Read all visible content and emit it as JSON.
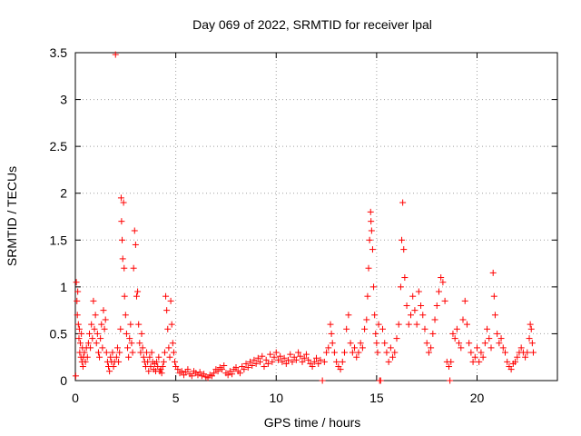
{
  "chart_data": {
    "type": "scatter",
    "title": "Day 069 of 2022, SRMTID for receiver lpal",
    "xlabel": "GPS time / hours",
    "ylabel": "SRMTID / TECUs",
    "xlim": [
      0,
      24
    ],
    "ylim": [
      0,
      3.5
    ],
    "x_ticks": [
      0,
      5,
      10,
      15,
      20
    ],
    "x_tick_labels": [
      "0",
      "5",
      "10",
      "15",
      "20"
    ],
    "y_ticks": [
      0,
      0.5,
      1,
      1.5,
      2,
      2.5,
      3,
      3.5
    ],
    "y_tick_labels": [
      "0",
      "0.5",
      "1",
      "1.5",
      "2",
      "2.5",
      "3",
      "3.5"
    ],
    "grid": true,
    "marker": "+",
    "color": "#ff0000",
    "series": [
      {
        "name": "SRMTID",
        "points": [
          [
            0.02,
            0.05
          ],
          [
            0.05,
            1.05
          ],
          [
            0.08,
            0.85
          ],
          [
            0.1,
            0.7
          ],
          [
            0.12,
            0.95
          ],
          [
            0.15,
            0.6
          ],
          [
            0.18,
            0.45
          ],
          [
            0.2,
            0.55
          ],
          [
            0.22,
            0.3
          ],
          [
            0.25,
            0.4
          ],
          [
            0.28,
            0.25
          ],
          [
            0.3,
            0.5
          ],
          [
            0.33,
            0.2
          ],
          [
            0.35,
            0.35
          ],
          [
            0.38,
            0.15
          ],
          [
            0.4,
            0.25
          ],
          [
            0.45,
            0.3
          ],
          [
            0.5,
            0.2
          ],
          [
            0.55,
            0.35
          ],
          [
            0.6,
            0.25
          ],
          [
            0.65,
            0.4
          ],
          [
            0.7,
            0.5
          ],
          [
            0.75,
            0.35
          ],
          [
            0.8,
            0.6
          ],
          [
            0.85,
            0.45
          ],
          [
            0.9,
            0.85
          ],
          [
            0.95,
            0.55
          ],
          [
            1.0,
            0.7
          ],
          [
            1.05,
            0.4
          ],
          [
            1.1,
            0.5
          ],
          [
            1.15,
            0.3
          ],
          [
            1.2,
            0.25
          ],
          [
            1.25,
            0.45
          ],
          [
            1.3,
            0.6
          ],
          [
            1.35,
            0.35
          ],
          [
            1.4,
            0.75
          ],
          [
            1.45,
            0.55
          ],
          [
            1.5,
            0.65
          ],
          [
            1.55,
            0.3
          ],
          [
            1.6,
            0.2
          ],
          [
            1.65,
            0.15
          ],
          [
            1.7,
            0.1
          ],
          [
            1.75,
            0.25
          ],
          [
            1.8,
            0.2
          ],
          [
            1.85,
            0.3
          ],
          [
            1.9,
            0.15
          ],
          [
            1.95,
            0.2
          ],
          [
            2.0,
            3.48
          ],
          [
            2.05,
            0.25
          ],
          [
            2.1,
            0.35
          ],
          [
            2.15,
            0.2
          ],
          [
            2.2,
            0.3
          ],
          [
            2.25,
            0.55
          ],
          [
            2.28,
            1.95
          ],
          [
            2.3,
            1.7
          ],
          [
            2.33,
            1.5
          ],
          [
            2.36,
            1.3
          ],
          [
            2.4,
            1.9
          ],
          [
            2.43,
            1.2
          ],
          [
            2.45,
            0.9
          ],
          [
            2.5,
            0.7
          ],
          [
            2.55,
            0.5
          ],
          [
            2.6,
            0.35
          ],
          [
            2.65,
            0.25
          ],
          [
            2.7,
            0.45
          ],
          [
            2.75,
            0.6
          ],
          [
            2.8,
            0.4
          ],
          [
            2.85,
            0.3
          ],
          [
            2.9,
            1.2
          ],
          [
            2.95,
            1.6
          ],
          [
            3.0,
            1.45
          ],
          [
            3.05,
            0.9
          ],
          [
            3.1,
            0.95
          ],
          [
            3.15,
            0.6
          ],
          [
            3.2,
            0.4
          ],
          [
            3.25,
            0.3
          ],
          [
            3.3,
            0.5
          ],
          [
            3.35,
            0.35
          ],
          [
            3.4,
            0.25
          ],
          [
            3.45,
            0.2
          ],
          [
            3.5,
            0.15
          ],
          [
            3.55,
            0.3
          ],
          [
            3.6,
            0.2
          ],
          [
            3.65,
            0.1
          ],
          [
            3.7,
            0.25
          ],
          [
            3.75,
            0.15
          ],
          [
            3.8,
            0.3
          ],
          [
            3.85,
            0.2
          ],
          [
            3.9,
            0.12
          ],
          [
            3.95,
            0.18
          ],
          [
            4.0,
            0.1
          ],
          [
            4.05,
            0.2
          ],
          [
            4.1,
            0.15
          ],
          [
            4.15,
            0.25
          ],
          [
            4.2,
            0.1
          ],
          [
            4.25,
            0.12
          ],
          [
            4.3,
            0.08
          ],
          [
            4.35,
            0.15
          ],
          [
            4.4,
            0.2
          ],
          [
            4.45,
            0.3
          ],
          [
            4.5,
            0.9
          ],
          [
            4.55,
            0.75
          ],
          [
            4.6,
            0.55
          ],
          [
            4.65,
            0.35
          ],
          [
            4.7,
            0.25
          ],
          [
            4.75,
            0.85
          ],
          [
            4.8,
            0.6
          ],
          [
            4.85,
            0.4
          ],
          [
            4.9,
            0.3
          ],
          [
            4.95,
            0.2
          ],
          [
            5.0,
            0.15
          ],
          [
            5.1,
            0.12
          ],
          [
            5.2,
            0.08
          ],
          [
            5.3,
            0.1
          ],
          [
            5.4,
            0.06
          ],
          [
            5.5,
            0.09
          ],
          [
            5.6,
            0.12
          ],
          [
            5.7,
            0.07
          ],
          [
            5.8,
            0.05
          ],
          [
            5.9,
            0.1
          ],
          [
            6.0,
            0.08
          ],
          [
            6.1,
            0.06
          ],
          [
            6.2,
            0.09
          ],
          [
            6.3,
            0.05
          ],
          [
            6.4,
            0.07
          ],
          [
            6.5,
            0.04
          ],
          [
            6.6,
            0.03
          ],
          [
            6.7,
            0.06
          ],
          [
            6.8,
            0.05
          ],
          [
            6.9,
            0.08
          ],
          [
            7.0,
            0.12
          ],
          [
            7.1,
            0.1
          ],
          [
            7.2,
            0.14
          ],
          [
            7.3,
            0.12
          ],
          [
            7.4,
            0.16
          ],
          [
            7.5,
            0.08
          ],
          [
            7.6,
            0.06
          ],
          [
            7.7,
            0.1
          ],
          [
            7.8,
            0.07
          ],
          [
            7.9,
            0.12
          ],
          [
            8.0,
            0.14
          ],
          [
            8.1,
            0.1
          ],
          [
            8.2,
            0.08
          ],
          [
            8.3,
            0.15
          ],
          [
            8.4,
            0.12
          ],
          [
            8.5,
            0.18
          ],
          [
            8.6,
            0.14
          ],
          [
            8.7,
            0.2
          ],
          [
            8.8,
            0.16
          ],
          [
            8.9,
            0.22
          ],
          [
            9.0,
            0.18
          ],
          [
            9.1,
            0.24
          ],
          [
            9.2,
            0.2
          ],
          [
            9.3,
            0.26
          ],
          [
            9.4,
            0.15
          ],
          [
            9.5,
            0.22
          ],
          [
            9.6,
            0.18
          ],
          [
            9.7,
            0.28
          ],
          [
            9.8,
            0.2
          ],
          [
            9.9,
            0.25
          ],
          [
            10.0,
            0.3
          ],
          [
            10.1,
            0.22
          ],
          [
            10.2,
            0.26
          ],
          [
            10.3,
            0.2
          ],
          [
            10.4,
            0.24
          ],
          [
            10.5,
            0.18
          ],
          [
            10.6,
            0.22
          ],
          [
            10.7,
            0.28
          ],
          [
            10.8,
            0.2
          ],
          [
            10.9,
            0.25
          ],
          [
            11.0,
            0.22
          ],
          [
            11.1,
            0.3
          ],
          [
            11.2,
            0.26
          ],
          [
            11.3,
            0.2
          ],
          [
            11.4,
            0.24
          ],
          [
            11.5,
            0.28
          ],
          [
            11.6,
            0.22
          ],
          [
            11.7,
            0.18
          ],
          [
            11.8,
            0.15
          ],
          [
            11.9,
            0.2
          ],
          [
            12.0,
            0.24
          ],
          [
            12.1,
            0.18
          ],
          [
            12.2,
            0.22
          ],
          [
            12.3,
            0.0
          ],
          [
            12.4,
            0.2
          ],
          [
            12.5,
            0.3
          ],
          [
            12.6,
            0.35
          ],
          [
            12.7,
            0.6
          ],
          [
            12.75,
            0.5
          ],
          [
            12.8,
            0.4
          ],
          [
            12.9,
            0.3
          ],
          [
            13.0,
            0.2
          ],
          [
            13.1,
            0.15
          ],
          [
            13.2,
            0.12
          ],
          [
            13.3,
            0.2
          ],
          [
            13.4,
            0.3
          ],
          [
            13.5,
            0.55
          ],
          [
            13.6,
            0.7
          ],
          [
            13.7,
            0.4
          ],
          [
            13.8,
            0.3
          ],
          [
            13.9,
            0.35
          ],
          [
            14.0,
            0.25
          ],
          [
            14.1,
            0.3
          ],
          [
            14.2,
            0.4
          ],
          [
            14.3,
            0.35
          ],
          [
            14.4,
            0.55
          ],
          [
            14.5,
            0.65
          ],
          [
            14.55,
            0.9
          ],
          [
            14.6,
            1.2
          ],
          [
            14.65,
            1.5
          ],
          [
            14.7,
            1.8
          ],
          [
            14.72,
            1.7
          ],
          [
            14.75,
            1.6
          ],
          [
            14.8,
            1.4
          ],
          [
            14.85,
            1.0
          ],
          [
            14.9,
            0.7
          ],
          [
            14.95,
            0.5
          ],
          [
            15.0,
            0.4
          ],
          [
            15.05,
            0.3
          ],
          [
            15.1,
            0.6
          ],
          [
            15.15,
            0.0
          ],
          [
            15.2,
            0.0
          ],
          [
            15.3,
            0.55
          ],
          [
            15.4,
            0.4
          ],
          [
            15.5,
            0.3
          ],
          [
            15.6,
            0.2
          ],
          [
            15.7,
            0.35
          ],
          [
            15.8,
            0.25
          ],
          [
            15.9,
            0.3
          ],
          [
            16.0,
            0.45
          ],
          [
            16.1,
            0.6
          ],
          [
            16.2,
            1.0
          ],
          [
            16.25,
            1.5
          ],
          [
            16.3,
            1.9
          ],
          [
            16.35,
            1.4
          ],
          [
            16.4,
            1.1
          ],
          [
            16.5,
            0.8
          ],
          [
            16.6,
            0.6
          ],
          [
            16.7,
            0.7
          ],
          [
            16.8,
            0.9
          ],
          [
            16.9,
            0.75
          ],
          [
            17.0,
            0.6
          ],
          [
            17.1,
            0.95
          ],
          [
            17.2,
            0.8
          ],
          [
            17.3,
            0.7
          ],
          [
            17.4,
            0.55
          ],
          [
            17.5,
            0.4
          ],
          [
            17.6,
            0.3
          ],
          [
            17.7,
            0.35
          ],
          [
            17.8,
            0.5
          ],
          [
            17.9,
            0.65
          ],
          [
            18.0,
            0.8
          ],
          [
            18.1,
            0.95
          ],
          [
            18.2,
            1.1
          ],
          [
            18.3,
            1.05
          ],
          [
            18.4,
            0.85
          ],
          [
            18.5,
            0.2
          ],
          [
            18.6,
            0.15
          ],
          [
            18.65,
            0.0
          ],
          [
            18.7,
            0.2
          ],
          [
            18.8,
            0.5
          ],
          [
            18.9,
            0.45
          ],
          [
            19.0,
            0.55
          ],
          [
            19.1,
            0.4
          ],
          [
            19.2,
            0.35
          ],
          [
            19.3,
            0.65
          ],
          [
            19.4,
            0.85
          ],
          [
            19.5,
            0.6
          ],
          [
            19.6,
            0.4
          ],
          [
            19.7,
            0.3
          ],
          [
            19.8,
            0.2
          ],
          [
            19.9,
            0.25
          ],
          [
            20.0,
            0.35
          ],
          [
            20.1,
            0.2
          ],
          [
            20.2,
            0.3
          ],
          [
            20.3,
            0.25
          ],
          [
            20.4,
            0.4
          ],
          [
            20.5,
            0.55
          ],
          [
            20.6,
            0.45
          ],
          [
            20.7,
            0.35
          ],
          [
            20.8,
            1.15
          ],
          [
            20.85,
            0.9
          ],
          [
            20.9,
            0.7
          ],
          [
            21.0,
            0.5
          ],
          [
            21.1,
            0.4
          ],
          [
            21.2,
            0.45
          ],
          [
            21.3,
            0.35
          ],
          [
            21.4,
            0.3
          ],
          [
            21.5,
            0.2
          ],
          [
            21.6,
            0.15
          ],
          [
            21.7,
            0.12
          ],
          [
            21.8,
            0.18
          ],
          [
            21.9,
            0.2
          ],
          [
            22.0,
            0.25
          ],
          [
            22.1,
            0.3
          ],
          [
            22.2,
            0.35
          ],
          [
            22.3,
            0.3
          ],
          [
            22.4,
            0.25
          ],
          [
            22.5,
            0.3
          ],
          [
            22.6,
            0.45
          ],
          [
            22.65,
            0.6
          ],
          [
            22.7,
            0.55
          ],
          [
            22.75,
            0.4
          ],
          [
            22.8,
            0.3
          ]
        ]
      }
    ]
  }
}
